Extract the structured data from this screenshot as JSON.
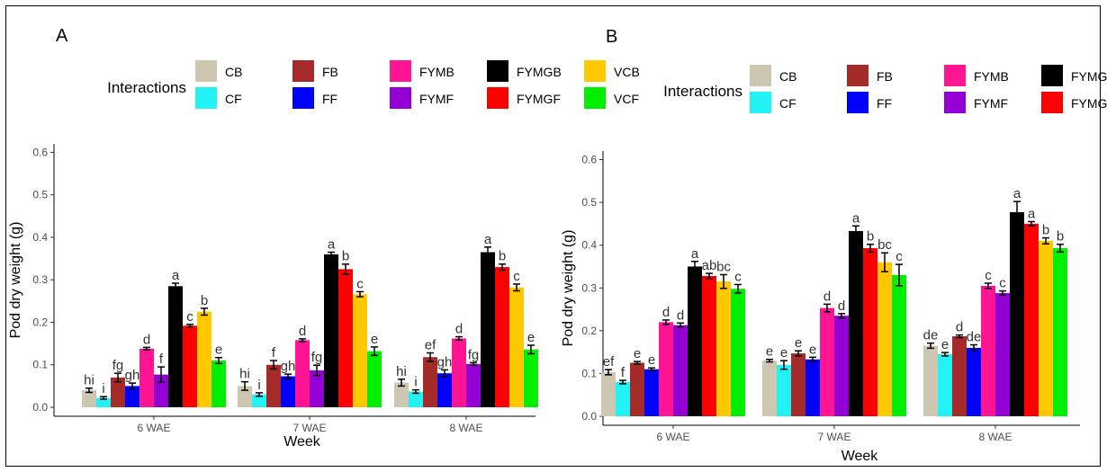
{
  "legend": {
    "title": "Interactions",
    "items": [
      {
        "name": "CB",
        "color": "#cdc6b0"
      },
      {
        "name": "CF",
        "color": "#22f2f4"
      },
      {
        "name": "FB",
        "color": "#a52a2a"
      },
      {
        "name": "FF",
        "color": "#0000ff"
      },
      {
        "name": "FYMB",
        "color": "#ff1493"
      },
      {
        "name": "FYMF",
        "color": "#9400d3"
      },
      {
        "name": "FYMGB",
        "color": "#000000"
      },
      {
        "name": "FYMGF",
        "color": "#ff0000"
      },
      {
        "name": "VCB",
        "color": "#ffc800"
      },
      {
        "name": "VCF",
        "color": "#00ee00"
      }
    ]
  },
  "chart_data": [
    {
      "panel": "A",
      "type": "bar",
      "xlabel": "Week",
      "ylabel": "Pod dry weight (g)",
      "ylim": [
        0,
        0.62
      ],
      "yticks": [
        "0.0",
        "0.1",
        "0.2",
        "0.3",
        "0.4",
        "0.5",
        "0.6"
      ],
      "categories": [
        "6 WAE",
        "7 WAE",
        "8 WAE"
      ],
      "series": [
        {
          "name": "CB",
          "values": [
            0.04,
            0.05,
            0.058
          ],
          "errors": [
            0.005,
            0.01,
            0.008
          ],
          "letters": [
            "hi",
            "hi",
            "hi"
          ]
        },
        {
          "name": "CF",
          "values": [
            0.022,
            0.03,
            0.037
          ],
          "errors": [
            0.003,
            0.004,
            0.004
          ],
          "letters": [
            "i",
            "i",
            "i"
          ]
        },
        {
          "name": "FB",
          "values": [
            0.07,
            0.1,
            0.118
          ],
          "errors": [
            0.01,
            0.01,
            0.01
          ],
          "letters": [
            "fg",
            "f",
            "ef"
          ]
        },
        {
          "name": "FF",
          "values": [
            0.05,
            0.073,
            0.08
          ],
          "errors": [
            0.007,
            0.005,
            0.008
          ],
          "letters": [
            "gh",
            "gh",
            "gh"
          ]
        },
        {
          "name": "FYMB",
          "values": [
            0.138,
            0.158,
            0.162
          ],
          "errors": [
            0.003,
            0.003,
            0.004
          ],
          "letters": [
            "d",
            "d",
            "d"
          ]
        },
        {
          "name": "FYMF",
          "values": [
            0.077,
            0.087,
            0.102
          ],
          "errors": [
            0.018,
            0.012,
            0.003
          ],
          "letters": [
            "f",
            "fg",
            "fg"
          ]
        },
        {
          "name": "FYMGB",
          "values": [
            0.285,
            0.36,
            0.365
          ],
          "errors": [
            0.007,
            0.005,
            0.012
          ],
          "letters": [
            "a",
            "a",
            "a"
          ]
        },
        {
          "name": "FYMGF",
          "values": [
            0.192,
            0.325,
            0.33
          ],
          "errors": [
            0.003,
            0.012,
            0.007
          ],
          "letters": [
            "c",
            "b",
            "b"
          ]
        },
        {
          "name": "VCB",
          "values": [
            0.225,
            0.266,
            0.282
          ],
          "errors": [
            0.008,
            0.006,
            0.008
          ],
          "letters": [
            "b",
            "c",
            "c"
          ]
        },
        {
          "name": "VCF",
          "values": [
            0.11,
            0.132,
            0.136
          ],
          "errors": [
            0.007,
            0.01,
            0.01
          ],
          "letters": [
            "e",
            "e",
            "e"
          ]
        }
      ]
    },
    {
      "panel": "B",
      "type": "bar",
      "xlabel": "Week",
      "ylabel": "Pod dry weight (g)",
      "ylim": [
        0,
        0.62
      ],
      "yticks": [
        "0.0",
        "0.1",
        "0.2",
        "0.3",
        "0.4",
        "0.5",
        "0.6"
      ],
      "categories": [
        "6 WAE",
        "7 WAE",
        "8 WAE"
      ],
      "series": [
        {
          "name": "CB",
          "values": [
            0.103,
            0.13,
            0.165
          ],
          "errors": [
            0.006,
            0.003,
            0.006
          ],
          "letters": [
            "ef",
            "e",
            "de"
          ]
        },
        {
          "name": "CF",
          "values": [
            0.08,
            0.12,
            0.145
          ],
          "errors": [
            0.004,
            0.01,
            0.004
          ],
          "letters": [
            "f",
            "e",
            "e"
          ]
        },
        {
          "name": "FB",
          "values": [
            0.125,
            0.147,
            0.187
          ],
          "errors": [
            0.003,
            0.006,
            0.003
          ],
          "letters": [
            "e",
            "e",
            "d"
          ]
        },
        {
          "name": "FF",
          "values": [
            0.11,
            0.133,
            0.16
          ],
          "errors": [
            0.003,
            0.005,
            0.007
          ],
          "letters": [
            "e",
            "e",
            "de"
          ]
        },
        {
          "name": "FYMB",
          "values": [
            0.22,
            0.253,
            0.305
          ],
          "errors": [
            0.005,
            0.009,
            0.006
          ],
          "letters": [
            "d",
            "d",
            "c"
          ]
        },
        {
          "name": "FYMF",
          "values": [
            0.213,
            0.235,
            0.288
          ],
          "errors": [
            0.005,
            0.005,
            0.005
          ],
          "letters": [
            "d",
            "d",
            "c"
          ]
        },
        {
          "name": "FYMGB",
          "values": [
            0.35,
            0.433,
            0.477
          ],
          "errors": [
            0.012,
            0.012,
            0.025
          ],
          "letters": [
            "a",
            "a",
            "a"
          ]
        },
        {
          "name": "FYMGF",
          "values": [
            0.328,
            0.393,
            0.45
          ],
          "errors": [
            0.006,
            0.009,
            0.005
          ],
          "letters": [
            "ab",
            "b",
            "a"
          ]
        },
        {
          "name": "VCB",
          "values": [
            0.315,
            0.36,
            0.41
          ],
          "errors": [
            0.016,
            0.022,
            0.007
          ],
          "letters": [
            "bc",
            "bc",
            "b"
          ]
        },
        {
          "name": "VCF",
          "values": [
            0.298,
            0.33,
            0.393
          ],
          "errors": [
            0.01,
            0.025,
            0.009
          ],
          "letters": [
            "c",
            "c",
            "b"
          ]
        }
      ]
    }
  ]
}
